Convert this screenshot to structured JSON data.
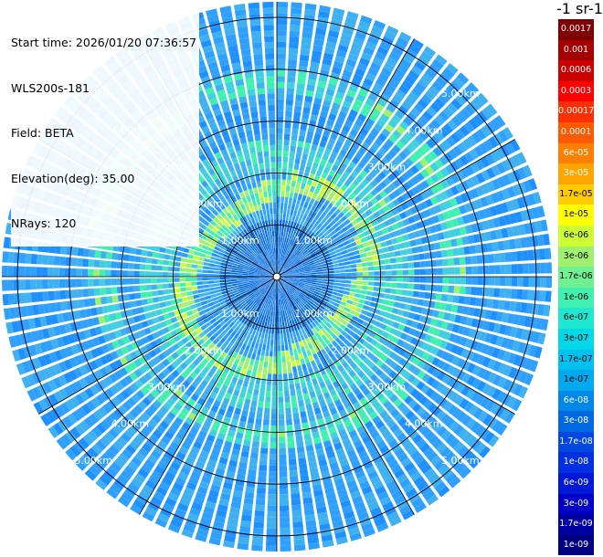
{
  "info": {
    "start_time": "Start time: 2026/01/20 07:36:57",
    "instrument": "WLS200s-181",
    "field": "Field: BETA",
    "elevation": "Elevation(deg): 35.00",
    "nrays": "NRays: 120"
  },
  "colorbar": {
    "title": "-1 sr-1",
    "levels": [
      {
        "label": "0.0017",
        "bg": "#7f0000",
        "fg": "#ffffff"
      },
      {
        "label": "0.001",
        "bg": "#a50000",
        "fg": "#ffffff"
      },
      {
        "label": "0.0006",
        "bg": "#cc0000",
        "fg": "#ffffff"
      },
      {
        "label": "0.0003",
        "bg": "#ff0000",
        "fg": "#ffffff"
      },
      {
        "label": "0.00017",
        "bg": "#ff3000",
        "fg": "#ffffff"
      },
      {
        "label": "0.0001",
        "bg": "#ff5a00",
        "fg": "#ffffff"
      },
      {
        "label": "6e-05",
        "bg": "#ff8000",
        "fg": "#ffffff"
      },
      {
        "label": "3e-05",
        "bg": "#ffa500",
        "fg": "#ffffff"
      },
      {
        "label": "1.7e-05",
        "bg": "#ffcc00",
        "fg": "#000000"
      },
      {
        "label": "1e-05",
        "bg": "#ffff00",
        "fg": "#000000"
      },
      {
        "label": "6e-06",
        "bg": "#ccff33",
        "fg": "#000000"
      },
      {
        "label": "3e-06",
        "bg": "#a0f070",
        "fg": "#000000"
      },
      {
        "label": "1.7e-06",
        "bg": "#70f090",
        "fg": "#000000"
      },
      {
        "label": "1e-06",
        "bg": "#40f0b0",
        "fg": "#000000"
      },
      {
        "label": "6e-07",
        "bg": "#20e8d0",
        "fg": "#000000"
      },
      {
        "label": "3e-07",
        "bg": "#00d8e8",
        "fg": "#000000"
      },
      {
        "label": "1.7e-07",
        "bg": "#00c0f0",
        "fg": "#000000"
      },
      {
        "label": "1e-07",
        "bg": "#00a8f0",
        "fg": "#000000"
      },
      {
        "label": "6e-08",
        "bg": "#0088e8",
        "fg": "#ffffff"
      },
      {
        "label": "3e-08",
        "bg": "#0068e0",
        "fg": "#ffffff"
      },
      {
        "label": "1.7e-08",
        "bg": "#0048e0",
        "fg": "#ffffff"
      },
      {
        "label": "1e-08",
        "bg": "#0030e0",
        "fg": "#ffffff"
      },
      {
        "label": "6e-09",
        "bg": "#0018d8",
        "fg": "#ffffff"
      },
      {
        "label": "3e-09",
        "bg": "#0000c8",
        "fg": "#ffffff"
      },
      {
        "label": "1.7e-09",
        "bg": "#0000a0",
        "fg": "#ffffff"
      },
      {
        "label": "1e-09",
        "bg": "#000080",
        "fg": "#ffffff"
      }
    ]
  },
  "chart_data": {
    "type": "heatmap",
    "projection": "polar-ppi",
    "field": "BETA",
    "elevation_deg": 35.0,
    "n_rays": 120,
    "range_rings_km": [
      1,
      2,
      3,
      4,
      5
    ],
    "ring_labels": [
      "1.00km",
      "2.00km",
      "3.00km",
      "4.00km",
      "5.00km"
    ],
    "max_range_km": 5.3,
    "dominant_color": "#1e90ff",
    "aerosol_layer_ring_km": [
      1.7,
      2.3,
      3.4
    ],
    "aerosol_layer_colors": [
      "#40f0b0",
      "#ccff33"
    ]
  }
}
